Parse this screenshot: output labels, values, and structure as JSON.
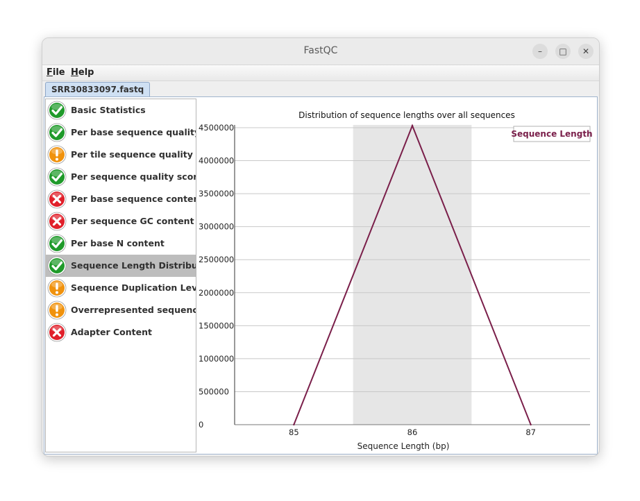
{
  "window": {
    "title": "FastQC",
    "minimize_glyph": "–",
    "maximize_glyph": "□",
    "close_glyph": "✕"
  },
  "menu": [
    {
      "accel": "F",
      "rest": "ile"
    },
    {
      "accel": "H",
      "rest": "elp"
    }
  ],
  "tab": {
    "label": "SRR30833097.fastq"
  },
  "modules": [
    {
      "label": "Basic Statistics",
      "status": "pass",
      "icon": "check-icon"
    },
    {
      "label": "Per base sequence quality",
      "status": "pass",
      "icon": "check-icon"
    },
    {
      "label": "Per tile sequence quality",
      "status": "warn",
      "icon": "warning-icon"
    },
    {
      "label": "Per sequence quality scores",
      "status": "pass",
      "icon": "check-icon"
    },
    {
      "label": "Per base sequence content",
      "status": "fail",
      "icon": "cross-icon"
    },
    {
      "label": "Per sequence GC content",
      "status": "fail",
      "icon": "cross-icon"
    },
    {
      "label": "Per base N content",
      "status": "pass",
      "icon": "check-icon"
    },
    {
      "label": "Sequence Length Distribution",
      "status": "pass",
      "icon": "check-icon",
      "selected": true
    },
    {
      "label": "Sequence Duplication Levels",
      "status": "warn",
      "icon": "warning-icon"
    },
    {
      "label": "Overrepresented sequences",
      "status": "warn",
      "icon": "warning-icon"
    },
    {
      "label": "Adapter Content",
      "status": "fail",
      "icon": "cross-icon"
    }
  ],
  "colors": {
    "pass": "#1f9a2a",
    "warn": "#f0920d",
    "fail": "#e0202a",
    "series": "#7a1f4a",
    "band": "#e6e6e6",
    "grid": "#c8c8c8"
  },
  "chart_data": {
    "type": "line",
    "title": "Distribution of sequence lengths over all sequences",
    "xlabel": "Sequence Length (bp)",
    "ylabel": "",
    "categories": [
      "85",
      "86",
      "87"
    ],
    "series": [
      {
        "name": "Sequence Length",
        "values": [
          0,
          4530000,
          0
        ]
      }
    ],
    "ylim": [
      0,
      4500000
    ],
    "yticks": [
      0,
      500000,
      1000000,
      1500000,
      2000000,
      2500000,
      3000000,
      3500000,
      4000000,
      4500000
    ],
    "highlight_band": "86",
    "legend_position": "top-right",
    "grid": true
  }
}
